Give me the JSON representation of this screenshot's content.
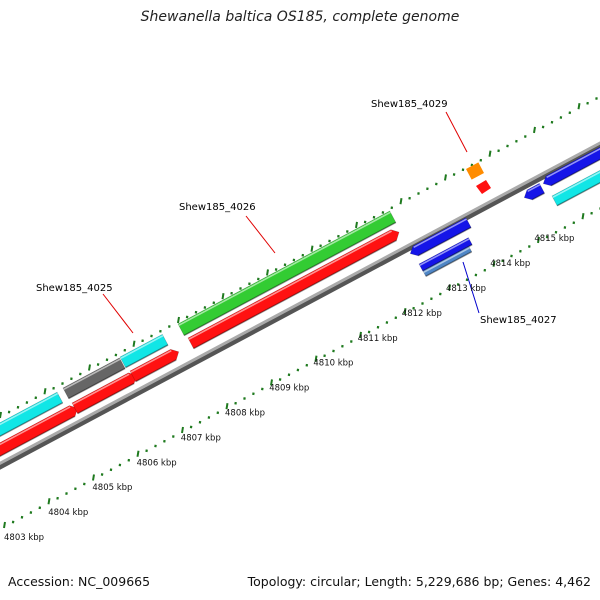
{
  "title": "Shewanella baltica OS185, complete genome",
  "footer": {
    "accession": "Accession: NC_009665",
    "summary": "Topology: circular; Length: 5,229,686 bp; Genes: 4,462"
  },
  "colors": {
    "backbone": "#8c8c8c",
    "tick": "#1f7a1f",
    "red": "#ff1111",
    "green": "#33cc33",
    "cyan": "#11e6e6",
    "gray": "#666666",
    "blue": "#1515e8",
    "steel": "#4f86c6",
    "orange": "#ff8c00",
    "label_red": "#e00000",
    "label_blue": "#0000cc"
  },
  "scale": {
    "tick_labels": [
      "4803 kbp",
      "4804 kbp",
      "4805 kbp",
      "4806 kbp",
      "4807 kbp",
      "4808 kbp",
      "4809 kbp",
      "4810 kbp",
      "4811 kbp",
      "4812 kbp",
      "4813 kbp",
      "4814 kbp",
      "4815 kbp"
    ]
  },
  "gene_labels": [
    {
      "text": "Shew185_4025",
      "color_key": "label_red"
    },
    {
      "text": "Shew185_4026",
      "color_key": "label_red"
    },
    {
      "text": "Shew185_4029",
      "color_key": "label_red"
    },
    {
      "text": "Shew185_4027",
      "color_key": "label_blue"
    }
  ]
}
